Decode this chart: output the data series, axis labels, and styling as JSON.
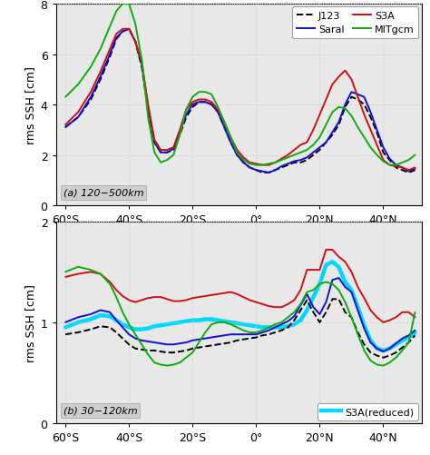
{
  "x_ticks": [
    -60,
    -40,
    -20,
    0,
    20,
    40
  ],
  "x_tick_labels": [
    "60°S",
    "40°S",
    "20°S",
    "0°",
    "20°N",
    "40°N"
  ],
  "x_range": [
    -63,
    52
  ],
  "panel_a": {
    "ylim": [
      0,
      8
    ],
    "yticks": [
      0,
      2,
      4,
      6,
      8
    ],
    "ytick_labels": [
      "0",
      "2",
      "4",
      "6",
      "8"
    ],
    "ylabel": "rms SSH [cm]",
    "label": "(a) 120−500km",
    "J123": {
      "x": [
        -60,
        -56,
        -52,
        -49,
        -46,
        -44,
        -42,
        -40,
        -38,
        -36,
        -34,
        -32,
        -30,
        -28,
        -26,
        -24,
        -22,
        -20,
        -18,
        -16,
        -14,
        -12,
        -10,
        -8,
        -6,
        -4,
        -2,
        0,
        2,
        4,
        6,
        8,
        10,
        12,
        14,
        16,
        18,
        20,
        22,
        24,
        26,
        28,
        30,
        32,
        34,
        36,
        38,
        40,
        42,
        44,
        46,
        48,
        50
      ],
      "y": [
        3.1,
        3.5,
        4.2,
        5.0,
        5.9,
        6.6,
        6.9,
        7.0,
        6.5,
        5.5,
        3.8,
        2.5,
        2.1,
        2.1,
        2.2,
        2.8,
        3.5,
        3.9,
        4.1,
        4.1,
        4.0,
        3.7,
        3.1,
        2.5,
        2.0,
        1.7,
        1.5,
        1.4,
        1.3,
        1.3,
        1.4,
        1.5,
        1.6,
        1.7,
        1.7,
        1.8,
        2.0,
        2.2,
        2.5,
        2.8,
        3.2,
        3.9,
        4.3,
        4.2,
        4.0,
        3.5,
        2.9,
        2.1,
        1.8,
        1.5,
        1.4,
        1.3,
        1.4
      ],
      "color": "#000000",
      "linestyle": "--",
      "linewidth": 1.4
    },
    "Saral": {
      "x": [
        -60,
        -56,
        -52,
        -49,
        -46,
        -44,
        -42,
        -40,
        -38,
        -36,
        -34,
        -32,
        -30,
        -28,
        -26,
        -24,
        -22,
        -20,
        -18,
        -16,
        -14,
        -12,
        -10,
        -8,
        -6,
        -4,
        -2,
        0,
        2,
        4,
        6,
        8,
        10,
        12,
        14,
        16,
        18,
        20,
        22,
        24,
        26,
        28,
        30,
        32,
        34,
        36,
        38,
        40,
        42,
        44,
        46,
        48,
        50
      ],
      "y": [
        3.1,
        3.5,
        4.3,
        5.1,
        6.0,
        6.65,
        6.9,
        7.0,
        6.5,
        5.6,
        3.9,
        2.5,
        2.1,
        2.1,
        2.25,
        2.9,
        3.6,
        4.0,
        4.1,
        4.1,
        4.0,
        3.7,
        3.1,
        2.5,
        2.0,
        1.7,
        1.5,
        1.4,
        1.35,
        1.3,
        1.4,
        1.55,
        1.65,
        1.75,
        1.8,
        1.9,
        2.1,
        2.3,
        2.5,
        2.9,
        3.3,
        4.0,
        4.5,
        4.4,
        4.3,
        3.7,
        3.0,
        2.3,
        1.85,
        1.6,
        1.5,
        1.35,
        1.45
      ],
      "color": "#1111cc",
      "linestyle": "-",
      "linewidth": 1.4
    },
    "S3A": {
      "x": [
        -60,
        -56,
        -52,
        -49,
        -46,
        -44,
        -42,
        -40,
        -38,
        -36,
        -34,
        -32,
        -30,
        -28,
        -26,
        -24,
        -22,
        -20,
        -18,
        -16,
        -14,
        -12,
        -10,
        -8,
        -6,
        -4,
        -2,
        0,
        2,
        4,
        6,
        8,
        10,
        12,
        14,
        16,
        18,
        20,
        22,
        24,
        26,
        28,
        30,
        32,
        34,
        36,
        38,
        40,
        42,
        44,
        46,
        48,
        50
      ],
      "y": [
        3.2,
        3.7,
        4.5,
        5.3,
        6.2,
        6.8,
        7.0,
        7.0,
        6.5,
        5.7,
        4.0,
        2.6,
        2.2,
        2.2,
        2.3,
        3.0,
        3.8,
        4.1,
        4.2,
        4.2,
        4.1,
        3.8,
        3.3,
        2.7,
        2.2,
        1.9,
        1.7,
        1.65,
        1.6,
        1.6,
        1.7,
        1.85,
        2.0,
        2.2,
        2.4,
        2.5,
        3.0,
        3.6,
        4.2,
        4.8,
        5.1,
        5.35,
        5.0,
        4.3,
        3.6,
        3.0,
        2.4,
        1.8,
        1.6,
        1.55,
        1.5,
        1.4,
        1.5
      ],
      "color": "#cc1111",
      "linestyle": "-",
      "linewidth": 1.4
    },
    "MITgcm": {
      "x": [
        -60,
        -56,
        -52,
        -49,
        -46,
        -44,
        -42,
        -40,
        -38,
        -36,
        -34,
        -32,
        -30,
        -28,
        -26,
        -24,
        -22,
        -20,
        -18,
        -16,
        -14,
        -12,
        -10,
        -8,
        -6,
        -4,
        -2,
        0,
        2,
        4,
        6,
        8,
        10,
        12,
        14,
        16,
        18,
        20,
        22,
        24,
        26,
        28,
        30,
        32,
        34,
        36,
        38,
        40,
        42,
        44,
        46,
        48,
        50
      ],
      "y": [
        4.3,
        4.8,
        5.5,
        6.2,
        7.1,
        7.7,
        8.0,
        8.0,
        7.2,
        5.8,
        3.5,
        2.1,
        1.7,
        1.8,
        2.0,
        2.8,
        3.8,
        4.3,
        4.5,
        4.5,
        4.4,
        3.9,
        3.3,
        2.7,
        2.1,
        1.8,
        1.65,
        1.6,
        1.6,
        1.65,
        1.7,
        1.8,
        1.9,
        2.0,
        2.1,
        2.2,
        2.4,
        2.7,
        3.2,
        3.7,
        3.9,
        3.85,
        3.55,
        3.1,
        2.7,
        2.3,
        2.0,
        1.75,
        1.6,
        1.6,
        1.7,
        1.8,
        2.0
      ],
      "color": "#11aa11",
      "linestyle": "-",
      "linewidth": 1.4
    }
  },
  "panel_b": {
    "ylim": [
      0,
      2
    ],
    "yticks": [
      0,
      1,
      2
    ],
    "ytick_labels": [
      "0",
      "1",
      "2"
    ],
    "ylabel": "rms SSH [cm]",
    "label": "(b) 30−120km",
    "J123": {
      "x": [
        -60,
        -56,
        -52,
        -49,
        -46,
        -44,
        -42,
        -40,
        -38,
        -36,
        -34,
        -32,
        -30,
        -28,
        -26,
        -24,
        -22,
        -20,
        -18,
        -16,
        -14,
        -12,
        -10,
        -8,
        -6,
        -4,
        -2,
        0,
        2,
        4,
        6,
        8,
        10,
        12,
        14,
        16,
        18,
        20,
        22,
        24,
        26,
        28,
        30,
        32,
        34,
        36,
        38,
        40,
        42,
        44,
        46,
        48,
        50
      ],
      "y": [
        0.88,
        0.9,
        0.93,
        0.96,
        0.95,
        0.9,
        0.84,
        0.78,
        0.74,
        0.73,
        0.72,
        0.72,
        0.71,
        0.7,
        0.7,
        0.71,
        0.72,
        0.74,
        0.75,
        0.76,
        0.77,
        0.78,
        0.79,
        0.8,
        0.82,
        0.83,
        0.84,
        0.85,
        0.87,
        0.88,
        0.9,
        0.92,
        0.95,
        1.02,
        1.12,
        1.22,
        1.1,
        1.0,
        1.1,
        1.23,
        1.23,
        1.1,
        1.05,
        0.9,
        0.78,
        0.7,
        0.67,
        0.65,
        0.67,
        0.7,
        0.75,
        0.8,
        0.87
      ],
      "color": "#000000",
      "linestyle": "--",
      "linewidth": 1.4
    },
    "Saral": {
      "x": [
        -60,
        -56,
        -52,
        -49,
        -46,
        -44,
        -42,
        -40,
        -38,
        -36,
        -34,
        -32,
        -30,
        -28,
        -26,
        -24,
        -22,
        -20,
        -18,
        -16,
        -14,
        -12,
        -10,
        -8,
        -6,
        -4,
        -2,
        0,
        2,
        4,
        6,
        8,
        10,
        12,
        14,
        16,
        18,
        20,
        22,
        24,
        26,
        28,
        30,
        32,
        34,
        36,
        38,
        40,
        42,
        44,
        46,
        48,
        50
      ],
      "y": [
        1.0,
        1.05,
        1.08,
        1.12,
        1.1,
        1.02,
        0.95,
        0.88,
        0.84,
        0.82,
        0.81,
        0.8,
        0.79,
        0.78,
        0.78,
        0.79,
        0.8,
        0.82,
        0.83,
        0.84,
        0.85,
        0.86,
        0.87,
        0.88,
        0.88,
        0.88,
        0.88,
        0.88,
        0.9,
        0.92,
        0.95,
        0.98,
        1.01,
        1.06,
        1.17,
        1.28,
        1.15,
        1.08,
        1.2,
        1.42,
        1.44,
        1.35,
        1.3,
        1.12,
        0.94,
        0.8,
        0.74,
        0.71,
        0.74,
        0.79,
        0.84,
        0.87,
        0.92
      ],
      "color": "#1111cc",
      "linestyle": "-",
      "linewidth": 1.4
    },
    "S3A": {
      "x": [
        -60,
        -56,
        -52,
        -49,
        -46,
        -44,
        -42,
        -40,
        -38,
        -36,
        -34,
        -32,
        -30,
        -28,
        -26,
        -24,
        -22,
        -20,
        -18,
        -16,
        -14,
        -12,
        -10,
        -8,
        -6,
        -4,
        -2,
        0,
        2,
        4,
        6,
        8,
        10,
        12,
        14,
        16,
        18,
        20,
        22,
        24,
        26,
        28,
        30,
        32,
        34,
        36,
        38,
        40,
        42,
        44,
        46,
        48,
        50
      ],
      "y": [
        1.45,
        1.48,
        1.5,
        1.48,
        1.4,
        1.32,
        1.26,
        1.22,
        1.2,
        1.22,
        1.24,
        1.25,
        1.25,
        1.23,
        1.21,
        1.21,
        1.22,
        1.24,
        1.25,
        1.26,
        1.27,
        1.28,
        1.29,
        1.3,
        1.28,
        1.25,
        1.22,
        1.2,
        1.18,
        1.16,
        1.15,
        1.15,
        1.18,
        1.22,
        1.32,
        1.52,
        1.52,
        1.52,
        1.72,
        1.72,
        1.65,
        1.6,
        1.5,
        1.35,
        1.24,
        1.12,
        1.05,
        1.0,
        1.02,
        1.05,
        1.1,
        1.1,
        1.05
      ],
      "color": "#cc1111",
      "linestyle": "-",
      "linewidth": 1.4
    },
    "MITgcm": {
      "x": [
        -60,
        -56,
        -52,
        -49,
        -46,
        -44,
        -42,
        -40,
        -38,
        -36,
        -34,
        -32,
        -30,
        -28,
        -26,
        -24,
        -22,
        -20,
        -18,
        -16,
        -14,
        -12,
        -10,
        -8,
        -6,
        -4,
        -2,
        0,
        2,
        4,
        6,
        8,
        10,
        12,
        14,
        16,
        18,
        20,
        22,
        24,
        26,
        28,
        30,
        32,
        34,
        36,
        38,
        40,
        42,
        44,
        46,
        48,
        50
      ],
      "y": [
        1.5,
        1.55,
        1.52,
        1.48,
        1.38,
        1.25,
        1.1,
        0.98,
        0.88,
        0.78,
        0.68,
        0.6,
        0.58,
        0.57,
        0.58,
        0.6,
        0.65,
        0.7,
        0.8,
        0.9,
        0.98,
        1.0,
        1.0,
        0.98,
        0.95,
        0.92,
        0.9,
        0.9,
        0.92,
        0.95,
        0.98,
        1.0,
        1.05,
        1.1,
        1.18,
        1.3,
        1.32,
        1.38,
        1.4,
        1.38,
        1.32,
        1.2,
        1.05,
        0.88,
        0.72,
        0.62,
        0.58,
        0.57,
        0.6,
        0.65,
        0.72,
        0.8,
        1.1
      ],
      "color": "#11aa11",
      "linestyle": "-",
      "linewidth": 1.4
    },
    "S3A_reduced": {
      "x": [
        -60,
        -56,
        -52,
        -49,
        -46,
        -44,
        -42,
        -40,
        -38,
        -36,
        -34,
        -32,
        -30,
        -28,
        -26,
        -24,
        -22,
        -20,
        -18,
        -16,
        -14,
        -12,
        -10,
        -8,
        -6,
        -4,
        -2,
        0,
        2,
        4,
        6,
        8,
        10,
        12,
        14,
        16,
        18,
        20,
        22,
        24,
        26,
        28,
        30,
        32,
        34,
        36,
        38,
        40,
        42,
        44,
        46,
        48,
        50
      ],
      "y": [
        0.95,
        1.0,
        1.03,
        1.07,
        1.06,
        1.02,
        0.98,
        0.95,
        0.93,
        0.93,
        0.94,
        0.96,
        0.97,
        0.98,
        0.99,
        1.0,
        1.01,
        1.02,
        1.02,
        1.03,
        1.03,
        1.02,
        1.01,
        1.0,
        0.99,
        0.98,
        0.97,
        0.96,
        0.95,
        0.95,
        0.95,
        0.95,
        0.96,
        0.98,
        1.02,
        1.12,
        1.25,
        1.38,
        1.57,
        1.6,
        1.55,
        1.4,
        1.32,
        1.15,
        0.97,
        0.82,
        0.74,
        0.72,
        0.74,
        0.78,
        0.82,
        0.85,
        0.9
      ],
      "color": "#00d8ff",
      "linestyle": "-",
      "linewidth": 3.2
    }
  },
  "legend_a": {
    "entries": [
      {
        "color": "#000000",
        "linestyle": "--",
        "linewidth": 1.4,
        "label": "J123"
      },
      {
        "color": "#1111cc",
        "linestyle": "-",
        "linewidth": 1.4,
        "label": "Saral"
      },
      {
        "color": "#cc1111",
        "linestyle": "-",
        "linewidth": 1.4,
        "label": "S3A"
      },
      {
        "color": "#11aa11",
        "linestyle": "-",
        "linewidth": 1.4,
        "label": "MITgcm"
      }
    ]
  },
  "legend_b": {
    "entries": [
      {
        "color": "#00d8ff",
        "linestyle": "-",
        "linewidth": 3.2,
        "label": "S3A(reduced)"
      }
    ]
  },
  "grid_color": "#cccccc",
  "grid_linestyle": ":",
  "bg_color": "#e8e8e8"
}
